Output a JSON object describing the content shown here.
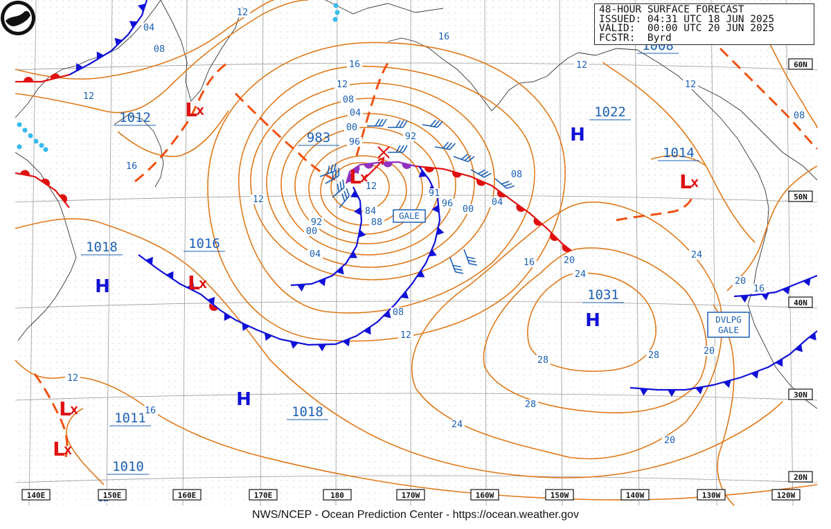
{
  "header": {
    "line1": "48-HOUR SURFACE FORECAST",
    "line2": "ISSUED: 04:31 UTC 18 JUN 2025",
    "line3": "VALID:  00:00 UTC 20 JUN 2025",
    "line4": "FCSTR:  Byrd"
  },
  "footer": "NWS/NCEP - Ocean Prediction Center - https://ocean.weather.gov",
  "logo": "noaa-logo",
  "colors": {
    "isobar": "#e07818",
    "cold": "#1010d8",
    "warm": "#e01010",
    "occluded": "#9030c0",
    "trough": "#f05010",
    "text": "#1a5fb4",
    "low": "#e01010",
    "high": "#1010d8",
    "ice": "#33bbee"
  },
  "lon_labels": [
    "140E",
    "150E",
    "160E",
    "170E",
    "180",
    "170W",
    "160W",
    "150W",
    "140W",
    "130W",
    "120W"
  ],
  "lat_labels": [
    "60N",
    "50N",
    "40N",
    "30N",
    "20N"
  ],
  "pressure_centers": [
    {
      "kind": "H",
      "value": "1022"
    },
    {
      "kind": "H",
      "value": "1031"
    },
    {
      "kind": "H",
      "value": "1018"
    },
    {
      "kind": "H",
      "value": "1018"
    },
    {
      "kind": "L",
      "value": "983"
    },
    {
      "kind": "L",
      "value": "1012"
    },
    {
      "kind": "L",
      "value": "1014"
    },
    {
      "kind": "L",
      "value": "1011"
    },
    {
      "kind": "L",
      "value": "1010"
    },
    {
      "kind": "L",
      "value": "1016"
    },
    {
      "kind": "L",
      "value": "1008"
    }
  ],
  "boxed_labels": [
    "GALE",
    "DVLPG\nGALE"
  ],
  "isobar_labels": [
    "12",
    "04",
    "08",
    "12",
    "16",
    "12",
    "16",
    "12",
    "08",
    "04",
    "00",
    "96",
    "92",
    "91",
    "96",
    "00",
    "04",
    "08",
    "12",
    "84",
    "88",
    "92",
    "00",
    "04",
    "08",
    "12",
    "16",
    "20",
    "24",
    "28",
    "28",
    "28",
    "24",
    "20",
    "20",
    "24",
    "20",
    "16",
    "12",
    "12",
    "16",
    "08",
    "12",
    "12",
    "16"
  ],
  "forecaster_marks": [
    "L",
    "X"
  ]
}
